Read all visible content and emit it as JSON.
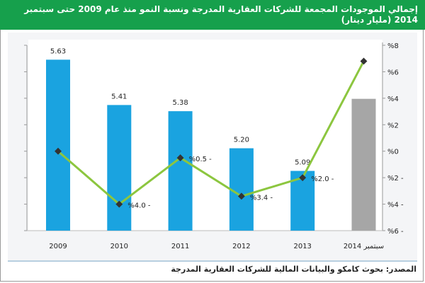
{
  "title": "إجمالي الموجودات المجمعة للشركات العقارية المدرجة ونسبة النمو منذ عام 2009 حتى سبتمبر 2014 (مليار دينار)",
  "source": "المصدر: بحوث كامكو والبيانات المالية للشركات العقارية المدرجة",
  "chart_data": {
    "type": "bar",
    "title": "إجمالي الموجودات المجمعة للشركات العقارية المدرجة ونسبة النمو منذ عام 2009 حتى سبتمبر 2014 (مليار دينار)",
    "categories": [
      "2009",
      "2010",
      "2011",
      "2012",
      "2013",
      "سبتمبر 2014"
    ],
    "series": [
      {
        "name": "total_assets",
        "type": "bar",
        "axis": "left",
        "values": [
          5.63,
          5.41,
          5.38,
          5.2,
          5.09,
          5.44
        ],
        "labels": [
          "5.63",
          "5.41",
          "5.38",
          "5.20",
          "5.09",
          ""
        ],
        "colors": [
          "#1aa3e0",
          "#1aa3e0",
          "#1aa3e0",
          "#1aa3e0",
          "#1aa3e0",
          "#a6a6a6"
        ]
      },
      {
        "name": "growth_rate",
        "type": "line",
        "axis": "right",
        "values": [
          0.0,
          -4.0,
          -0.5,
          -3.4,
          -2.0,
          6.8
        ],
        "labels": [
          "",
          "%4.0 -",
          "%0.5 -",
          "%3.4 -",
          "%2.0 -",
          ""
        ],
        "color": "#8cc63f"
      }
    ],
    "left_ylim": [
      4.8,
      5.7
    ],
    "right_ylim": [
      -6,
      8
    ],
    "right_ticks": [
      8,
      6,
      4,
      2,
      0,
      -2,
      -4,
      -6
    ],
    "right_tick_labels": [
      "%8",
      "%6",
      "%4",
      "%2",
      "%0",
      "%2 -",
      "%4 -",
      "%6 -"
    ],
    "grid": false,
    "legend": "none"
  }
}
